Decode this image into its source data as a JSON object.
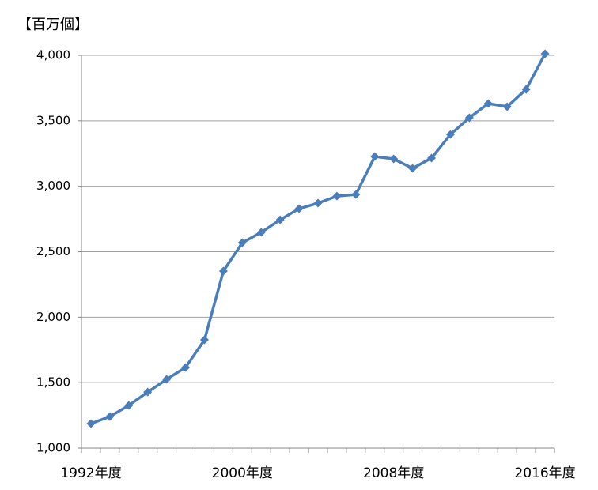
{
  "chart_data": {
    "type": "line",
    "unit_label": "【百万個】",
    "categories": [
      "1992年度",
      null,
      null,
      null,
      null,
      null,
      null,
      null,
      "2000年度",
      null,
      null,
      null,
      null,
      null,
      null,
      null,
      "2008年度",
      null,
      null,
      null,
      null,
      null,
      null,
      null,
      "2016年度"
    ],
    "series": [
      {
        "color": "#4a7ebb",
        "values": [
          1187,
          1241,
          1326,
          1428,
          1525,
          1616,
          1827,
          2352,
          2569,
          2648,
          2744,
          2829,
          2871,
          2925,
          2937,
          3227,
          3209,
          3137,
          3215,
          3396,
          3523,
          3632,
          3608,
          3740,
          4012
        ]
      }
    ],
    "ylim": [
      1000,
      4000
    ],
    "yticks": [
      {
        "value": 1000,
        "label": "1,000"
      },
      {
        "value": 1500,
        "label": "1,500"
      },
      {
        "value": 2000,
        "label": "2,000"
      },
      {
        "value": 2500,
        "label": "2,500"
      },
      {
        "value": 3000,
        "label": "3,000"
      },
      {
        "value": 3500,
        "label": "3,500"
      },
      {
        "value": 4000,
        "label": "4,000"
      }
    ],
    "grid": true
  }
}
